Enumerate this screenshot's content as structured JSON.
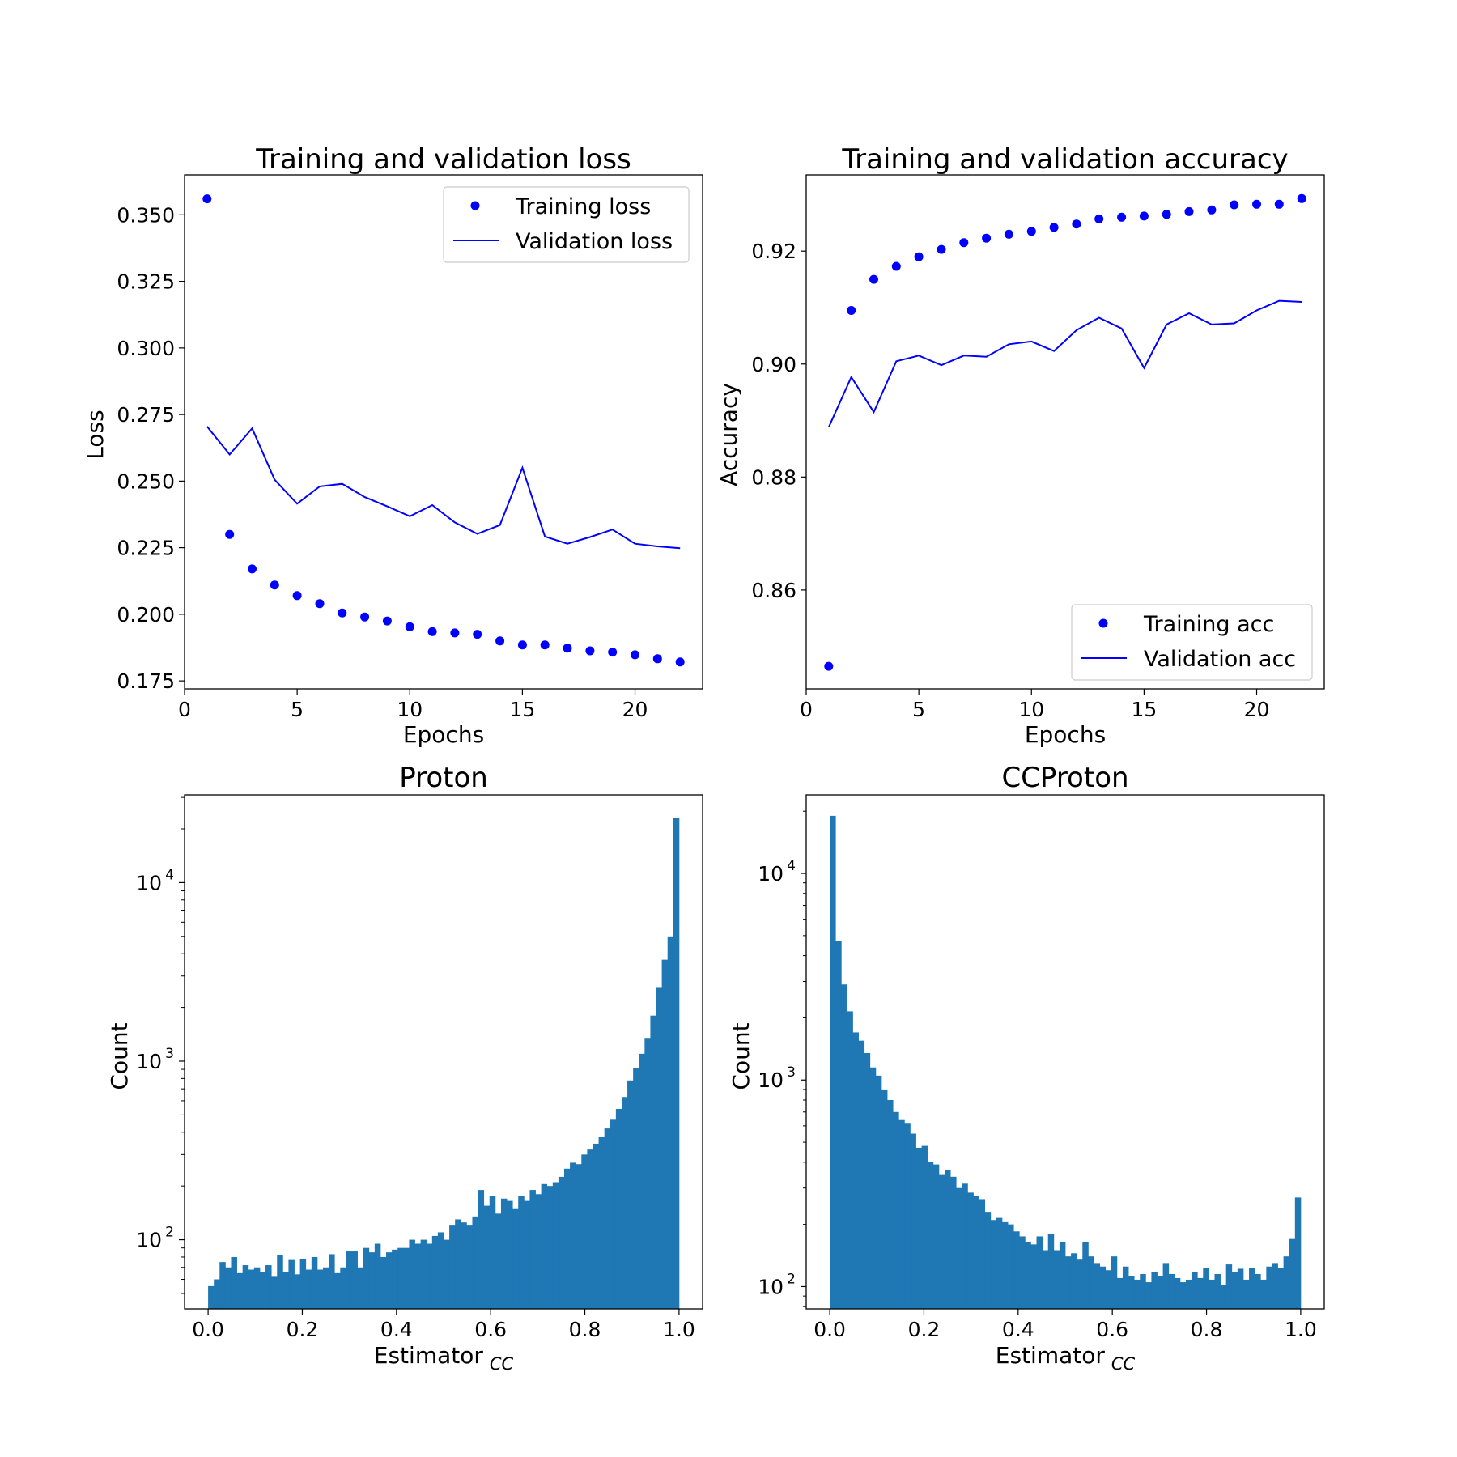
{
  "chart_data": [
    {
      "id": "loss",
      "type": "line",
      "title": "Training and validation loss",
      "xlabel": "Epochs",
      "ylabel": "Loss",
      "xlim": [
        0,
        23
      ],
      "ylim": [
        0.172,
        0.365
      ],
      "xticks": [
        0,
        5,
        10,
        15,
        20
      ],
      "yticks": [
        0.175,
        0.2,
        0.225,
        0.25,
        0.275,
        0.3,
        0.325,
        0.35
      ],
      "ytick_labels": [
        "0.175",
        "0.200",
        "0.225",
        "0.250",
        "0.275",
        "0.300",
        "0.325",
        "0.350"
      ],
      "legend_position": "upper-right",
      "x": [
        1,
        2,
        3,
        4,
        5,
        6,
        7,
        8,
        9,
        10,
        11,
        12,
        13,
        14,
        15,
        16,
        17,
        18,
        19,
        20,
        21,
        22
      ],
      "series": [
        {
          "name": "Training loss",
          "style": "points",
          "color": "#0000ff",
          "values": [
            0.356,
            0.23,
            0.217,
            0.211,
            0.207,
            0.204,
            0.2005,
            0.199,
            0.1975,
            0.1953,
            0.1935,
            0.193,
            0.1925,
            0.19,
            0.1885,
            0.1885,
            0.1873,
            0.1863,
            0.1858,
            0.1848,
            0.1833,
            0.1821
          ]
        },
        {
          "name": "Validation loss",
          "style": "line",
          "color": "#0000ff",
          "values": [
            0.2705,
            0.26,
            0.2698,
            0.2505,
            0.2415,
            0.248,
            0.249,
            0.244,
            0.2405,
            0.2368,
            0.241,
            0.2345,
            0.2302,
            0.2335,
            0.255,
            0.2292,
            0.2265,
            0.229,
            0.2318,
            0.2265,
            0.2255,
            0.2248
          ]
        }
      ]
    },
    {
      "id": "acc",
      "type": "line",
      "title": "Training and validation accuracy",
      "xlabel": "Epochs",
      "ylabel": "Accuracy",
      "xlim": [
        0,
        23
      ],
      "ylim": [
        0.8425,
        0.9335
      ],
      "xticks": [
        0,
        5,
        10,
        15,
        20
      ],
      "yticks": [
        0.86,
        0.88,
        0.9,
        0.92
      ],
      "ytick_labels": [
        "0.86",
        "0.88",
        "0.90",
        "0.92"
      ],
      "legend_position": "lower-right",
      "x": [
        1,
        2,
        3,
        4,
        5,
        6,
        7,
        8,
        9,
        10,
        11,
        12,
        13,
        14,
        15,
        16,
        17,
        18,
        19,
        20,
        21,
        22
      ],
      "series": [
        {
          "name": "Training acc",
          "style": "points",
          "color": "#0000ff",
          "values": [
            0.8465,
            0.9095,
            0.915,
            0.9173,
            0.919,
            0.9203,
            0.9215,
            0.9223,
            0.923,
            0.9235,
            0.9242,
            0.9248,
            0.9257,
            0.926,
            0.9262,
            0.9265,
            0.927,
            0.9273,
            0.9282,
            0.9283,
            0.9283,
            0.9293
          ]
        },
        {
          "name": "Validation acc",
          "style": "line",
          "color": "#0000ff",
          "values": [
            0.8888,
            0.8977,
            0.8915,
            0.9005,
            0.9015,
            0.8998,
            0.9015,
            0.9013,
            0.9035,
            0.904,
            0.9023,
            0.906,
            0.9082,
            0.9063,
            0.8993,
            0.907,
            0.909,
            0.907,
            0.9072,
            0.9095,
            0.9112,
            0.911
          ]
        }
      ]
    },
    {
      "id": "proton",
      "type": "bar",
      "title": "Proton",
      "xlabel": "Estimator",
      "xlabel_sub": "CC",
      "ylabel": "Count",
      "log_y": true,
      "xlim": [
        -0.05,
        1.05
      ],
      "ylim": [
        41,
        31000
      ],
      "xticks": [
        0.0,
        0.2,
        0.4,
        0.6,
        0.8,
        1.0
      ],
      "xtick_labels": [
        "0.0",
        "0.2",
        "0.4",
        "0.6",
        "0.8",
        "1.0"
      ],
      "ytick_labels": [
        {
          "value": 100,
          "base": "10",
          "exp": "2"
        },
        {
          "value": 1000,
          "base": "10",
          "exp": "3"
        },
        {
          "value": 10000,
          "base": "10",
          "exp": "4"
        }
      ],
      "bin_range": [
        0,
        1
      ],
      "color": "#1f77b4",
      "values": [
        55,
        60,
        75,
        70,
        80,
        65,
        72,
        68,
        70,
        66,
        72,
        62,
        82,
        66,
        77,
        64,
        78,
        68,
        80,
        68,
        70,
        83,
        65,
        70,
        86,
        86,
        70,
        90,
        85,
        95,
        80,
        85,
        88,
        90,
        90,
        100,
        95,
        100,
        95,
        105,
        110,
        100,
        120,
        130,
        125,
        120,
        135,
        190,
        155,
        175,
        140,
        170,
        165,
        150,
        175,
        165,
        190,
        180,
        205,
        200,
        210,
        225,
        250,
        270,
        265,
        300,
        320,
        345,
        375,
        420,
        470,
        540,
        630,
        780,
        920,
        1100,
        1350,
        1800,
        2600,
        3700,
        5000,
        23000
      ]
    },
    {
      "id": "ccproton",
      "type": "bar",
      "title": "CCProton",
      "xlabel": "Estimator",
      "xlabel_sub": "CC",
      "ylabel": "Count",
      "log_y": true,
      "xlim": [
        -0.05,
        1.05
      ],
      "ylim": [
        78,
        24000
      ],
      "xticks": [
        0.0,
        0.2,
        0.4,
        0.6,
        0.8,
        1.0
      ],
      "xtick_labels": [
        "0.0",
        "0.2",
        "0.4",
        "0.6",
        "0.8",
        "1.0"
      ],
      "ytick_labels": [
        {
          "value": 100,
          "base": "10",
          "exp": "2"
        },
        {
          "value": 1000,
          "base": "10",
          "exp": "3"
        },
        {
          "value": 10000,
          "base": "10",
          "exp": "4"
        }
      ],
      "bin_range": [
        0,
        1
      ],
      "color": "#1f77b4",
      "values": [
        19000,
        4700,
        2900,
        2150,
        1700,
        1550,
        1350,
        1150,
        1050,
        900,
        800,
        700,
        640,
        620,
        550,
        470,
        480,
        400,
        390,
        350,
        365,
        340,
        300,
        315,
        285,
        275,
        265,
        230,
        210,
        215,
        205,
        200,
        185,
        175,
        165,
        160,
        175,
        150,
        180,
        150,
        165,
        140,
        145,
        135,
        165,
        140,
        130,
        125,
        120,
        140,
        110,
        125,
        112,
        108,
        115,
        105,
        118,
        112,
        130,
        115,
        110,
        105,
        108,
        118,
        110,
        123,
        108,
        115,
        102,
        128,
        118,
        122,
        108,
        123,
        115,
        108,
        125,
        130,
        123,
        140,
        170,
        270
      ]
    }
  ]
}
